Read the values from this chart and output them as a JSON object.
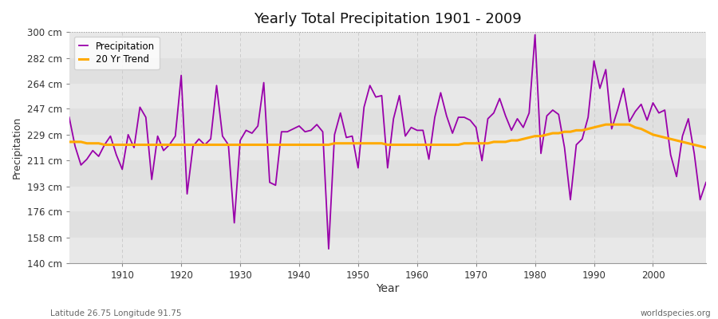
{
  "title": "Yearly Total Precipitation 1901 - 2009",
  "xlabel": "Year",
  "ylabel": "Precipitation",
  "fig_bg_color": "#ffffff",
  "plot_bg_color": "#e8e8e8",
  "band_color_light": "#ebebeb",
  "band_color_dark": "#e0e0e0",
  "precip_color": "#9900aa",
  "trend_color": "#ffaa00",
  "ylim": [
    140,
    300
  ],
  "yticks": [
    140,
    158,
    176,
    193,
    211,
    229,
    247,
    264,
    282,
    300
  ],
  "ytick_labels": [
    "140 cm",
    "158 cm",
    "176 cm",
    "193 cm",
    "211 cm",
    "229 cm",
    "247 cm",
    "264 cm",
    "282 cm",
    "300 cm"
  ],
  "xlim": [
    1901,
    2009
  ],
  "xticks": [
    1910,
    1920,
    1930,
    1940,
    1950,
    1960,
    1970,
    1980,
    1990,
    2000
  ],
  "footer_left": "Latitude 26.75 Longitude 91.75",
  "footer_right": "worldspecies.org",
  "years": [
    1901,
    1902,
    1903,
    1904,
    1905,
    1906,
    1907,
    1908,
    1909,
    1910,
    1911,
    1912,
    1913,
    1914,
    1915,
    1916,
    1917,
    1918,
    1919,
    1920,
    1921,
    1922,
    1923,
    1924,
    1925,
    1926,
    1927,
    1928,
    1929,
    1930,
    1931,
    1932,
    1933,
    1934,
    1935,
    1936,
    1937,
    1938,
    1939,
    1940,
    1941,
    1942,
    1943,
    1944,
    1945,
    1946,
    1947,
    1948,
    1949,
    1950,
    1951,
    1952,
    1953,
    1954,
    1955,
    1956,
    1957,
    1958,
    1959,
    1960,
    1961,
    1962,
    1963,
    1964,
    1965,
    1966,
    1967,
    1968,
    1969,
    1970,
    1971,
    1972,
    1973,
    1974,
    1975,
    1976,
    1977,
    1978,
    1979,
    1980,
    1981,
    1982,
    1983,
    1984,
    1985,
    1986,
    1987,
    1988,
    1989,
    1990,
    1991,
    1992,
    1993,
    1994,
    1995,
    1996,
    1997,
    1998,
    1999,
    2000,
    2001,
    2002,
    2003,
    2004,
    2005,
    2006,
    2007,
    2008,
    2009
  ],
  "precip": [
    241,
    221,
    208,
    212,
    218,
    214,
    222,
    228,
    215,
    205,
    229,
    220,
    248,
    241,
    198,
    228,
    218,
    222,
    228,
    270,
    188,
    221,
    226,
    222,
    226,
    263,
    228,
    222,
    168,
    225,
    232,
    230,
    235,
    265,
    196,
    194,
    231,
    231,
    233,
    235,
    231,
    232,
    236,
    231,
    150,
    229,
    244,
    227,
    228,
    206,
    248,
    263,
    255,
    256,
    206,
    240,
    256,
    228,
    234,
    232,
    232,
    212,
    241,
    258,
    242,
    230,
    241,
    241,
    239,
    234,
    211,
    240,
    244,
    254,
    242,
    232,
    240,
    234,
    244,
    298,
    216,
    242,
    246,
    243,
    220,
    184,
    222,
    226,
    241,
    280,
    261,
    274,
    233,
    246,
    261,
    238,
    245,
    250,
    239,
    251,
    244,
    246,
    215,
    200,
    228,
    240,
    216,
    184,
    196
  ],
  "trend": [
    224,
    224,
    224,
    223,
    223,
    223,
    222,
    222,
    222,
    222,
    222,
    222,
    222,
    222,
    222,
    222,
    222,
    222,
    222,
    222,
    222,
    222,
    222,
    222,
    222,
    222,
    222,
    222,
    222,
    222,
    222,
    222,
    222,
    222,
    222,
    222,
    222,
    222,
    222,
    222,
    222,
    222,
    222,
    222,
    222,
    223,
    223,
    223,
    223,
    223,
    223,
    223,
    223,
    223,
    222,
    222,
    222,
    222,
    222,
    222,
    222,
    222,
    222,
    222,
    222,
    222,
    222,
    223,
    223,
    223,
    223,
    223,
    224,
    224,
    224,
    225,
    225,
    226,
    227,
    228,
    228,
    229,
    230,
    230,
    231,
    231,
    232,
    232,
    233,
    234,
    235,
    236,
    236,
    236,
    236,
    236,
    234,
    233,
    231,
    229,
    228,
    227,
    226,
    225,
    224,
    223,
    222,
    221,
    220
  ]
}
